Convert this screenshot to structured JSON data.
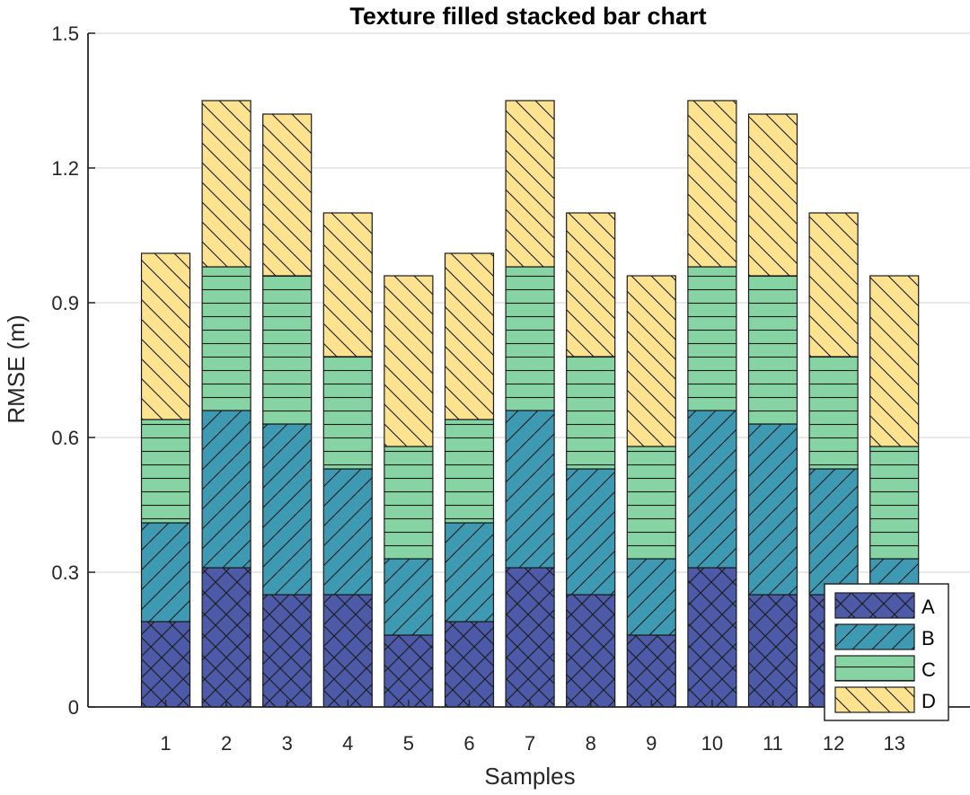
{
  "chart_data": {
    "type": "bar",
    "stacked": true,
    "title": "Texture filled stacked bar chart",
    "xlabel": "Samples",
    "ylabel": "RMSE (m)",
    "ylim": [
      0,
      1.5
    ],
    "yticks": [
      "0",
      "0.3",
      "0.6",
      "0.9",
      "1.2",
      "1.5"
    ],
    "grid": "horizontal",
    "legend_position": "bottom-right",
    "categories": [
      "1",
      "2",
      "3",
      "4",
      "5",
      "6",
      "7",
      "8",
      "9",
      "10",
      "11",
      "12",
      "13"
    ],
    "series": [
      {
        "name": "A",
        "color": "#4c5aa8",
        "pattern": "cross-hatch",
        "values": [
          0.19,
          0.31,
          0.25,
          0.25,
          0.16,
          0.19,
          0.31,
          0.25,
          0.16,
          0.31,
          0.25,
          0.25,
          0.16
        ]
      },
      {
        "name": "B",
        "color": "#3d9ab2",
        "pattern": "forward-diagonal",
        "values": [
          0.22,
          0.35,
          0.38,
          0.28,
          0.17,
          0.22,
          0.35,
          0.28,
          0.17,
          0.35,
          0.38,
          0.28,
          0.17
        ]
      },
      {
        "name": "C",
        "color": "#86d3a3",
        "pattern": "horizontal",
        "values": [
          0.23,
          0.32,
          0.33,
          0.25,
          0.25,
          0.23,
          0.32,
          0.25,
          0.25,
          0.32,
          0.33,
          0.25,
          0.25
        ]
      },
      {
        "name": "D",
        "color": "#fde38f",
        "pattern": "back-diagonal",
        "values": [
          0.37,
          0.37,
          0.36,
          0.32,
          0.38,
          0.37,
          0.37,
          0.32,
          0.38,
          0.37,
          0.36,
          0.32,
          0.38
        ]
      }
    ]
  }
}
